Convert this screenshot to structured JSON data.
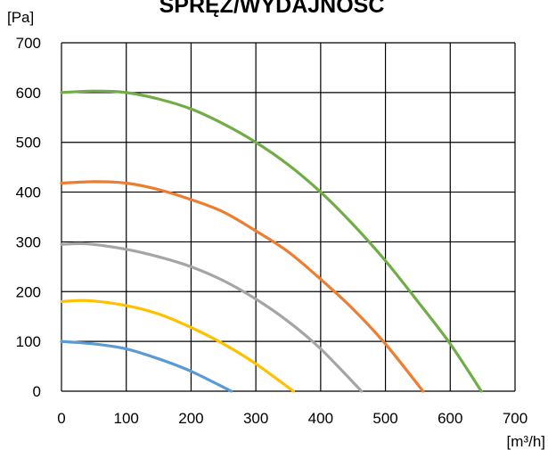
{
  "chart_data": {
    "type": "line",
    "title": "SPRĘŻ/WYDAJNOŚĆ",
    "ylabel": "[Pa]",
    "xlabel": "[m³/h]",
    "xlim": [
      0,
      700
    ],
    "ylim": [
      0,
      700
    ],
    "xticks": [
      "0",
      "100",
      "200",
      "300",
      "400",
      "500",
      "600",
      "700"
    ],
    "yticks": [
      "0",
      "100",
      "200",
      "300",
      "400",
      "500",
      "600",
      "700"
    ],
    "grid": true,
    "series": [
      {
        "color": "#5b9bd5",
        "x": [
          0,
          50,
          100,
          150,
          200,
          262
        ],
        "y": [
          100,
          95,
          85,
          65,
          40,
          0
        ]
      },
      {
        "color": "#ffc000",
        "x": [
          0,
          40,
          100,
          150,
          200,
          250,
          300,
          358
        ],
        "y": [
          180,
          182,
          172,
          155,
          128,
          95,
          55,
          0
        ]
      },
      {
        "color": "#a5a5a5",
        "x": [
          0,
          40,
          100,
          150,
          200,
          250,
          300,
          350,
          400,
          463
        ],
        "y": [
          295,
          296,
          285,
          270,
          250,
          222,
          185,
          140,
          85,
          0
        ]
      },
      {
        "color": "#ed7d31",
        "x": [
          0,
          50,
          100,
          150,
          200,
          250,
          300,
          350,
          400,
          450,
          500,
          558
        ],
        "y": [
          418,
          421,
          418,
          405,
          385,
          360,
          322,
          280,
          225,
          165,
          95,
          0
        ]
      },
      {
        "color": "#70ad47",
        "x": [
          0,
          50,
          100,
          150,
          200,
          250,
          300,
          350,
          400,
          450,
          500,
          550,
          600,
          648
        ],
        "y": [
          600,
          603,
          600,
          587,
          567,
          537,
          500,
          455,
          400,
          335,
          262,
          180,
          95,
          0
        ]
      }
    ]
  }
}
